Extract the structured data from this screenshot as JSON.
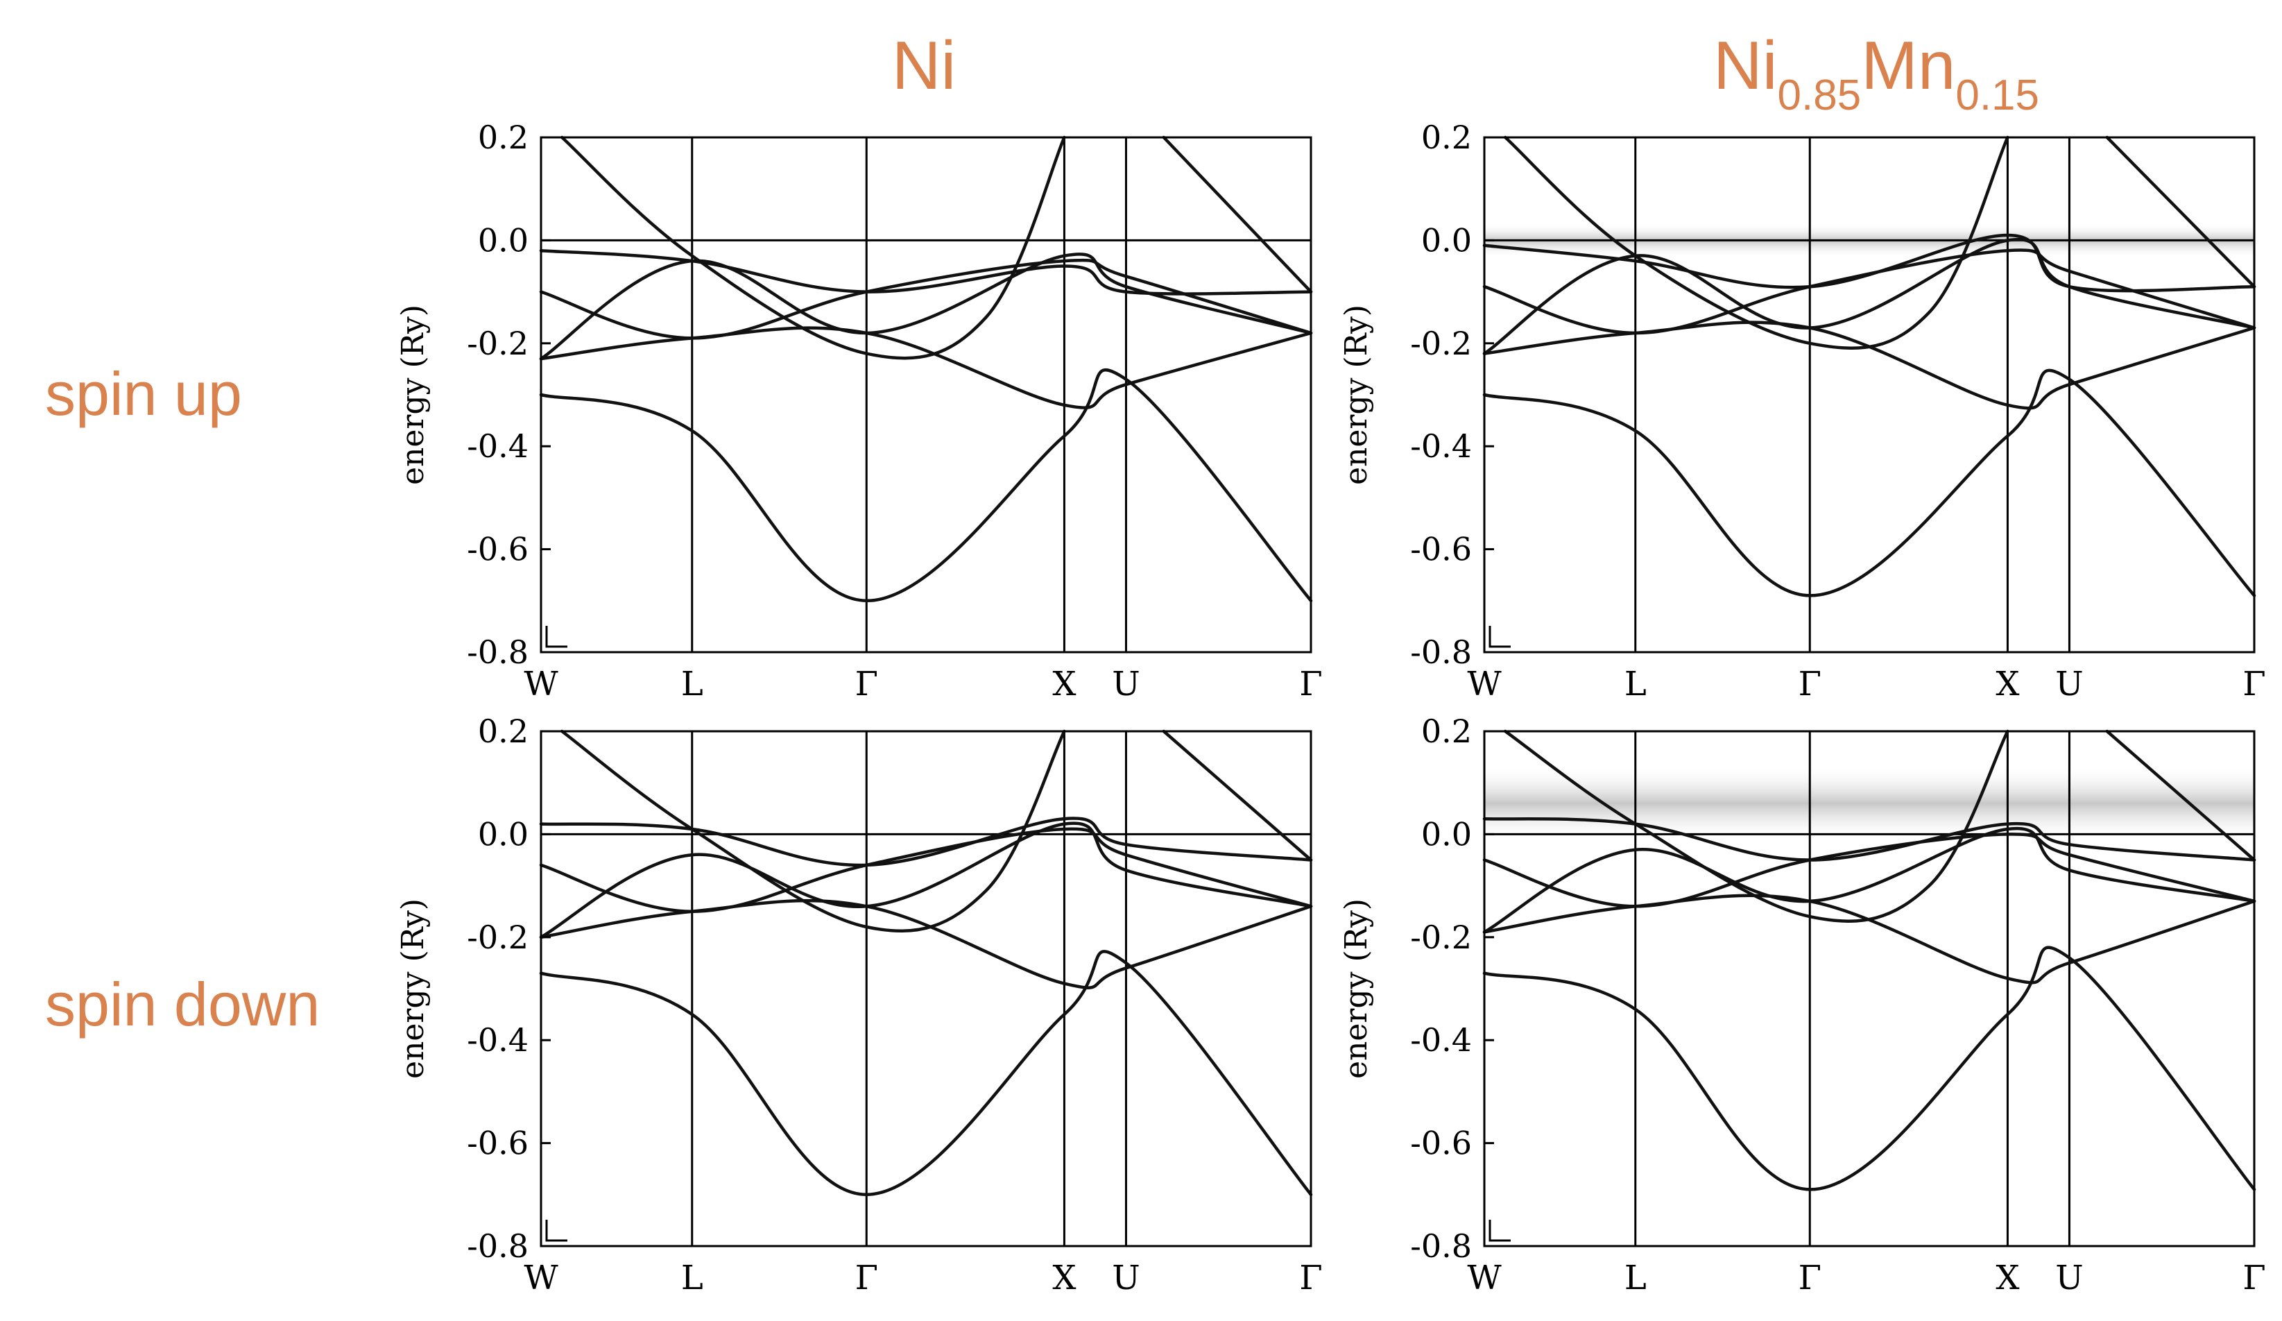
{
  "column_titles": [
    {
      "main": "Ni",
      "parts": []
    },
    {
      "main": "",
      "parts": [
        {
          "text": "Ni",
          "sub": "0.85"
        },
        {
          "text": "Mn",
          "sub": "0.15"
        }
      ]
    }
  ],
  "row_labels": [
    "spin up",
    "spin down"
  ],
  "colors": {
    "accent": "#d9824e",
    "band": "#111111",
    "axis": "#000000",
    "smear": "#8c8c8c"
  },
  "chart_data": [
    {
      "type": "line",
      "panel": "Ni / spin up",
      "ylabel": "energy (Ry)",
      "xlabel": "",
      "ylim": [
        -0.8,
        0.2
      ],
      "yticks": [
        "0.2",
        "0.0",
        "-0.2",
        "-0.4",
        "-0.6",
        "-0.8"
      ],
      "ytick_values": [
        0.2,
        0.0,
        -0.2,
        -0.4,
        -0.6,
        -0.8
      ],
      "xticks": [
        "W",
        "L",
        "Γ",
        "X",
        "U",
        "Γ"
      ],
      "xtick_positions": [
        0,
        0.866,
        1.866,
        3.0,
        3.354,
        4.414
      ],
      "fermi_level": 0.0,
      "grid": false,
      "series": [
        {
          "x": [
            0,
            0.866,
            1.866,
            3.0,
            3.354,
            4.414
          ],
          "y": [
            -0.3,
            -0.37,
            -0.7,
            -0.38,
            -0.27,
            -0.7
          ]
        },
        {
          "x": [
            0,
            0.866,
            1.866,
            3.0,
            3.354,
            4.414
          ],
          "y": [
            -0.23,
            -0.19,
            -0.18,
            -0.32,
            -0.28,
            -0.18
          ]
        },
        {
          "x": [
            0,
            0.866,
            1.866,
            3.0,
            3.354,
            4.414
          ],
          "y": [
            -0.23,
            -0.04,
            -0.18,
            -0.03,
            -0.09,
            -0.18
          ]
        },
        {
          "x": [
            0,
            0.866,
            1.866,
            3.0,
            3.354,
            4.414
          ],
          "y": [
            -0.1,
            -0.19,
            -0.1,
            -0.04,
            -0.07,
            -0.18
          ]
        },
        {
          "x": [
            0,
            0.866,
            1.866,
            3.0,
            3.354,
            4.414
          ],
          "y": [
            -0.02,
            -0.04,
            -0.1,
            -0.05,
            -0.1,
            -0.1
          ]
        },
        {
          "x": [
            0.12,
            0.866,
            1.866,
            2.55,
            3.0
          ],
          "y": [
            0.2,
            -0.03,
            -0.22,
            -0.15,
            0.2
          ]
        },
        {
          "x": [
            3.57,
            4.414
          ],
          "y": [
            0.2,
            -0.1
          ]
        }
      ]
    },
    {
      "type": "line",
      "panel": "Ni0.85Mn0.15 / spin up",
      "ylabel": "energy (Ry)",
      "xlabel": "",
      "ylim": [
        -0.8,
        0.2
      ],
      "yticks": [
        "0.2",
        "0.0",
        "-0.2",
        "-0.4",
        "-0.6",
        "-0.8"
      ],
      "ytick_values": [
        0.2,
        0.0,
        -0.2,
        -0.4,
        -0.6,
        -0.8
      ],
      "xticks": [
        "W",
        "L",
        "Γ",
        "X",
        "U",
        "Γ"
      ],
      "xtick_positions": [
        0,
        0.866,
        1.866,
        3.0,
        3.354,
        4.414
      ],
      "fermi_level": 0.0,
      "grid": false,
      "smearing_band_y": [
        -0.02,
        0.02
      ],
      "series": [
        {
          "x": [
            0,
            0.866,
            1.866,
            3.0,
            3.354,
            4.414
          ],
          "y": [
            -0.3,
            -0.37,
            -0.69,
            -0.38,
            -0.27,
            -0.69
          ]
        },
        {
          "x": [
            0,
            0.866,
            1.866,
            3.0,
            3.354,
            4.414
          ],
          "y": [
            -0.22,
            -0.18,
            -0.17,
            -0.32,
            -0.28,
            -0.17
          ]
        },
        {
          "x": [
            0,
            0.866,
            1.866,
            3.0,
            3.354,
            4.414
          ],
          "y": [
            -0.22,
            -0.03,
            -0.17,
            0.0,
            -0.09,
            -0.17
          ]
        },
        {
          "x": [
            0,
            0.866,
            1.866,
            3.0,
            3.354,
            4.414
          ],
          "y": [
            -0.09,
            -0.18,
            -0.09,
            -0.02,
            -0.06,
            -0.17
          ]
        },
        {
          "x": [
            0,
            0.866,
            1.866,
            3.0,
            3.354,
            4.414
          ],
          "y": [
            -0.01,
            -0.04,
            -0.09,
            0.01,
            -0.09,
            -0.09
          ]
        },
        {
          "x": [
            0.12,
            0.866,
            1.866,
            2.55,
            3.0
          ],
          "y": [
            0.2,
            -0.03,
            -0.2,
            -0.14,
            0.2
          ]
        },
        {
          "x": [
            3.57,
            4.414
          ],
          "y": [
            0.2,
            -0.09
          ]
        }
      ]
    },
    {
      "type": "line",
      "panel": "Ni / spin down",
      "ylabel": "energy (Ry)",
      "xlabel": "",
      "ylim": [
        -0.8,
        0.2
      ],
      "yticks": [
        "0.2",
        "0.0",
        "-0.2",
        "-0.4",
        "-0.6",
        "-0.8"
      ],
      "ytick_values": [
        0.2,
        0.0,
        -0.2,
        -0.4,
        -0.6,
        -0.8
      ],
      "xticks": [
        "W",
        "L",
        "Γ",
        "X",
        "U",
        "Γ"
      ],
      "xtick_positions": [
        0,
        0.866,
        1.866,
        3.0,
        3.354,
        4.414
      ],
      "fermi_level": 0.0,
      "grid": false,
      "series": [
        {
          "x": [
            0,
            0.866,
            1.866,
            3.0,
            3.354,
            4.414
          ],
          "y": [
            -0.27,
            -0.35,
            -0.7,
            -0.35,
            -0.25,
            -0.7
          ]
        },
        {
          "x": [
            0,
            0.866,
            1.866,
            3.0,
            3.354,
            4.414
          ],
          "y": [
            -0.2,
            -0.15,
            -0.14,
            -0.29,
            -0.26,
            -0.14
          ]
        },
        {
          "x": [
            0,
            0.866,
            1.866,
            3.0,
            3.354,
            4.414
          ],
          "y": [
            -0.2,
            -0.04,
            -0.14,
            0.02,
            -0.07,
            -0.14
          ]
        },
        {
          "x": [
            0,
            0.866,
            1.866,
            3.0,
            3.354,
            4.414
          ],
          "y": [
            -0.06,
            -0.15,
            -0.06,
            0.01,
            -0.04,
            -0.14
          ]
        },
        {
          "x": [
            0,
            0.866,
            1.866,
            3.0,
            3.354,
            4.414
          ],
          "y": [
            0.02,
            0.01,
            -0.06,
            0.03,
            -0.02,
            -0.05
          ]
        },
        {
          "x": [
            0.12,
            0.866,
            1.866,
            2.55,
            3.0
          ],
          "y": [
            0.2,
            0.01,
            -0.18,
            -0.11,
            0.2
          ]
        },
        {
          "x": [
            3.57,
            4.414
          ],
          "y": [
            0.2,
            -0.05
          ]
        }
      ]
    },
    {
      "type": "line",
      "panel": "Ni0.85Mn0.15 / spin down",
      "ylabel": "energy (Ry)",
      "xlabel": "",
      "ylim": [
        -0.8,
        0.2
      ],
      "yticks": [
        "0.2",
        "0.0",
        "-0.2",
        "-0.4",
        "-0.6",
        "-0.8"
      ],
      "ytick_values": [
        0.2,
        0.0,
        -0.2,
        -0.4,
        -0.6,
        -0.8
      ],
      "xticks": [
        "W",
        "L",
        "Γ",
        "X",
        "U",
        "Γ"
      ],
      "xtick_positions": [
        0,
        0.866,
        1.866,
        3.0,
        3.354,
        4.414
      ],
      "fermi_level": 0.0,
      "grid": false,
      "smearing_band_y": [
        0.0,
        0.12
      ],
      "series": [
        {
          "x": [
            0,
            0.866,
            1.866,
            3.0,
            3.354,
            4.414
          ],
          "y": [
            -0.27,
            -0.34,
            -0.69,
            -0.35,
            -0.24,
            -0.69
          ]
        },
        {
          "x": [
            0,
            0.866,
            1.866,
            3.0,
            3.354,
            4.414
          ],
          "y": [
            -0.19,
            -0.14,
            -0.13,
            -0.28,
            -0.25,
            -0.13
          ]
        },
        {
          "x": [
            0,
            0.866,
            1.866,
            3.0,
            3.354,
            4.414
          ],
          "y": [
            -0.19,
            -0.03,
            -0.13,
            0.01,
            -0.07,
            -0.13
          ]
        },
        {
          "x": [
            0,
            0.866,
            1.866,
            3.0,
            3.354,
            4.414
          ],
          "y": [
            -0.05,
            -0.14,
            -0.05,
            0.0,
            -0.04,
            -0.13
          ]
        },
        {
          "x": [
            0,
            0.866,
            1.866,
            3.0,
            3.354,
            4.414
          ],
          "y": [
            0.03,
            0.02,
            -0.05,
            0.02,
            -0.02,
            -0.05
          ]
        },
        {
          "x": [
            0.12,
            0.866,
            1.866,
            2.55,
            3.0
          ],
          "y": [
            0.2,
            0.02,
            -0.16,
            -0.1,
            0.2
          ]
        },
        {
          "x": [
            3.57,
            4.414
          ],
          "y": [
            0.2,
            -0.05
          ]
        }
      ]
    }
  ]
}
